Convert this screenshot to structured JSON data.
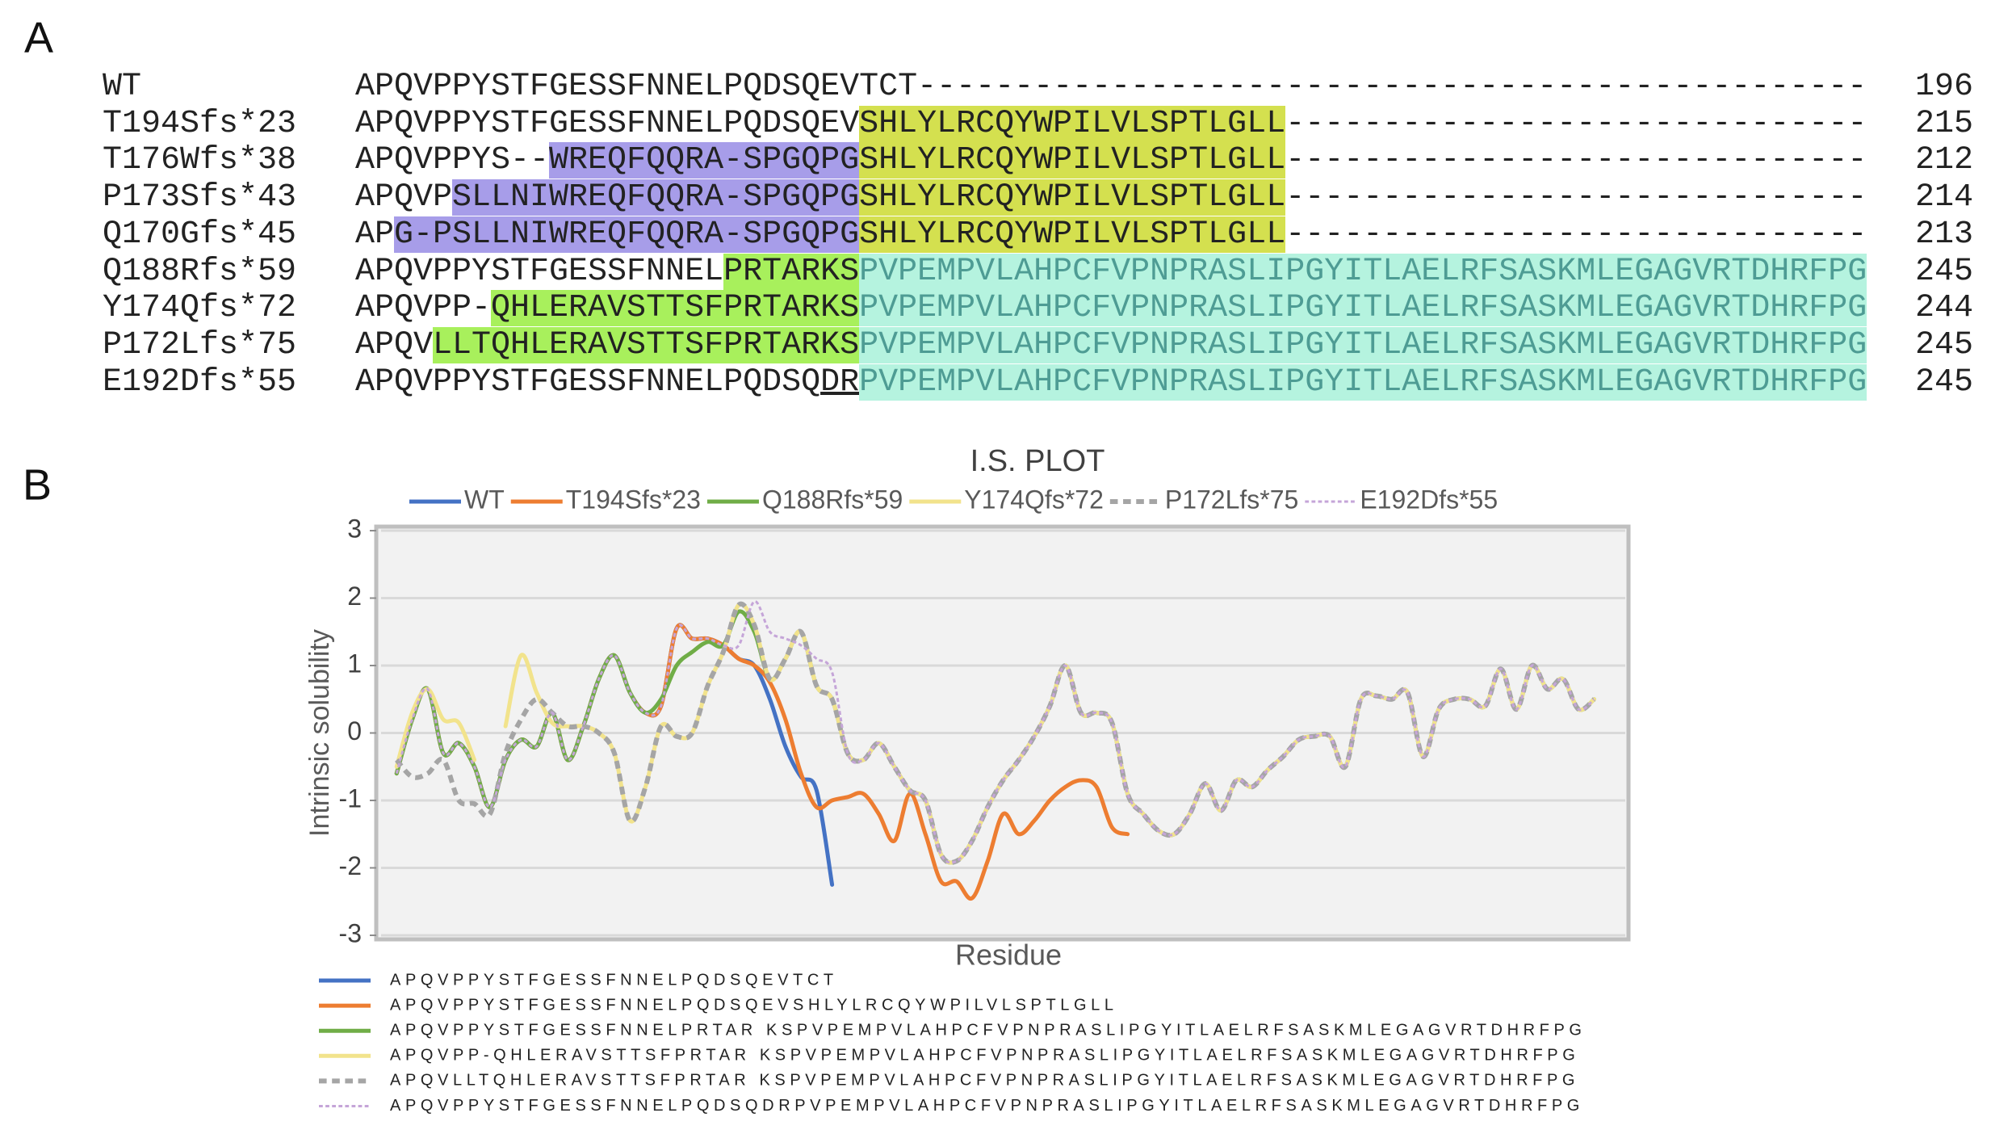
{
  "panel_a": {
    "label": "A",
    "rows": [
      {
        "name": "WT",
        "segments": [
          {
            "text": "APQVPPYSTFGESSFNNELPQDSQEVTCT-------------------------------------------------"
          }
        ],
        "end": 196
      },
      {
        "name": "T194Sfs*23",
        "segments": [
          {
            "text": "APQVPPYSTFGESSFNNELPQDSQEV"
          },
          {
            "text": "SHLYLRCQYWPILVLSPTLGLL",
            "highlight": "#d4e04f"
          },
          {
            "text": "------------------------------"
          }
        ],
        "end": 215
      },
      {
        "name": "T176Wfs*38",
        "segments": [
          {
            "text": "APQVPPYS--"
          },
          {
            "text": "WREQFQQRA-SPGQPG",
            "highlight": "#a79de9"
          },
          {
            "text": "SHLYLRCQYWPILVLSPTLGLL",
            "highlight": "#d4e04f"
          },
          {
            "text": "------------------------------"
          }
        ],
        "end": 212
      },
      {
        "name": "P173Sfs*43",
        "segments": [
          {
            "text": "APQVP"
          },
          {
            "text": "SLLNIWREQFQQRA-SPGQPG",
            "highlight": "#a79de9"
          },
          {
            "text": "SHLYLRCQYWPILVLSPTLGLL",
            "highlight": "#d4e04f"
          },
          {
            "text": "------------------------------"
          }
        ],
        "end": 214
      },
      {
        "name": "Q170Gfs*45",
        "segments": [
          {
            "text": "AP"
          },
          {
            "text": "G-PSLLNIWREQFQQRA-SPGQPG",
            "highlight": "#a79de9"
          },
          {
            "text": "SHLYLRCQYWPILVLSPTLGLL",
            "highlight": "#d4e04f"
          },
          {
            "text": "------------------------------"
          }
        ],
        "end": 213
      },
      {
        "name": "Q188Rfs*59",
        "segments": [
          {
            "text": "APQVPPYSTFGESSFNNEL"
          },
          {
            "text": "PRTARKS",
            "highlight": "#a8f05c"
          },
          {
            "text": "PVPEMPVLAHPCFVPNPRASLIPGYITLAELRFSASKMLEGAGVRTDHRFPG",
            "highlight": "#b5f3df",
            "text_color": "#4e9c94"
          }
        ],
        "end": 245
      },
      {
        "name": "Y174Qfs*72",
        "segments": [
          {
            "text": "APQVPP-"
          },
          {
            "text": "QHLERAVSTTSFPRTARKS",
            "highlight": "#a8f05c"
          },
          {
            "text": "PVPEMPVLAHPCFVPNPRASLIPGYITLAELRFSASKMLEGAGVRTDHRFPG",
            "highlight": "#b5f3df",
            "text_color": "#4e9c94"
          }
        ],
        "end": 244
      },
      {
        "name": "P172Lfs*75",
        "segments": [
          {
            "text": "APQV"
          },
          {
            "text": "LLTQHLERAVSTTSFPRTARKS",
            "highlight": "#a8f05c"
          },
          {
            "text": "PVPEMPVLAHPCFVPNPRASLIPGYITLAELRFSASKMLEGAGVRTDHRFPG",
            "highlight": "#b5f3df",
            "text_color": "#4e9c94"
          }
        ],
        "end": 245
      },
      {
        "name": "E192Dfs*55",
        "segments": [
          {
            "text": "APQVPPYSTFGESSFNNELPQDSQ"
          },
          {
            "text": "DR",
            "underline": true
          },
          {
            "text": "PVPEMPVLAHPCFVPNPRASLIPGYITLAELRFSASKMLEGAGVRTDHRFPG",
            "highlight": "#b5f3df",
            "text_color": "#4e9c94"
          }
        ],
        "end": 245
      }
    ]
  },
  "panel_b": {
    "label": "B"
  },
  "chart_data": {
    "type": "line",
    "title": "I.S. PLOT",
    "ylabel": "Intrinsic solubility",
    "xlabel": "Residue",
    "ylim": [
      -3,
      3
    ],
    "yticks": [
      -3,
      -2,
      -1,
      0,
      1,
      2,
      3
    ],
    "grid": true,
    "smooth": true,
    "series": [
      {
        "name": "WT",
        "color": "#4472c4",
        "line_style": "solid",
        "line_width": 5,
        "sequence": "APQVPPYSTFGESSFNNELPQDSQEVTCT",
        "values": [
          -0.6,
          0.2,
          0.65,
          -0.3,
          -0.15,
          -0.5,
          -1.1,
          -0.4,
          -0.1,
          -0.2,
          0.3,
          -0.4,
          0.1,
          0.8,
          1.15,
          0.6,
          0.3,
          0.4,
          1.55,
          1.4,
          1.4,
          1.3,
          1.1,
          1.0,
          0.5,
          -0.2,
          -0.65,
          -0.85,
          -2.25
        ]
      },
      {
        "name": "T194Sfs*23",
        "color": "#ed7d31",
        "line_style": "solid",
        "line_width": 5,
        "sequence": "APQVPPYSTFGESSFNNELPQDSQEVSHLYLRCQYWPILVLSPTLGLL",
        "values": [
          -0.6,
          0.2,
          0.65,
          -0.3,
          -0.15,
          -0.5,
          -1.1,
          -0.4,
          -0.1,
          -0.2,
          0.3,
          -0.4,
          0.1,
          0.8,
          1.15,
          0.6,
          0.3,
          0.4,
          1.55,
          1.4,
          1.4,
          1.3,
          1.1,
          1.0,
          0.75,
          0.2,
          -0.6,
          -1.1,
          -1.0,
          -0.95,
          -0.9,
          -1.2,
          -1.6,
          -0.9,
          -1.5,
          -2.2,
          -2.2,
          -2.45,
          -1.9,
          -1.2,
          -1.5,
          -1.3,
          -1.0,
          -0.8,
          -0.7,
          -0.8,
          -1.4,
          -1.5
        ]
      },
      {
        "name": "Q188Rfs*59",
        "color": "#70ad47",
        "line_style": "solid",
        "line_width": 5,
        "sequence": "APQVPPYSTFGESSFNNELPRTAR KSPVPEMPVLAHPCFVPNPRASLIPGYITLAELRFSASKMLEGAGVRTDHRFPG",
        "values": [
          -0.6,
          0.2,
          0.65,
          -0.3,
          -0.15,
          -0.5,
          -1.1,
          -0.4,
          -0.1,
          -0.2,
          0.3,
          -0.4,
          0.1,
          0.8,
          1.15,
          0.6,
          0.3,
          0.5,
          1.0,
          1.2,
          1.35,
          1.3,
          1.8,
          1.5,
          0.8,
          1.1,
          1.5,
          0.7,
          0.5,
          -0.3,
          -0.4,
          -0.15,
          -0.5,
          -0.85,
          -1.0,
          -1.8,
          -1.9,
          -1.6,
          -1.1,
          -0.7,
          -0.4,
          -0.05,
          0.4,
          1.0,
          0.3,
          0.3,
          0.15,
          -0.9,
          -1.2,
          -1.45,
          -1.5,
          -1.2,
          -0.75,
          -1.15,
          -0.7,
          -0.8,
          -0.55,
          -0.35,
          -0.1,
          -0.05,
          -0.05,
          -0.5,
          0.5,
          0.55,
          0.5,
          0.6,
          -0.35,
          0.35,
          0.5,
          0.5,
          0.4,
          0.95,
          0.35,
          1.0,
          0.65,
          0.8,
          0.35,
          0.5
        ]
      },
      {
        "name": "Y174Qfs*72",
        "color": "#f2e38c",
        "line_style": "solid",
        "line_width": 5,
        "sequence": "APQVPP-QHLERAVSTTSFPRTAR KSPVPEMPVLAHPCFVPNPRASLIPGYITLAELRFSASKMLEGAGVRTDHRFPG",
        "values": [
          -0.5,
          0.3,
          0.65,
          0.2,
          0.15,
          -0.4,
          null,
          0.1,
          1.15,
          0.6,
          0.15,
          0.1,
          0.1,
          0,
          -0.3,
          -1.3,
          -0.8,
          0.1,
          -0.05,
          0,
          0.7,
          1.2,
          1.9,
          1.6,
          0.8,
          1.1,
          1.5,
          0.7,
          0.5,
          -0.3,
          -0.4,
          -0.15,
          -0.5,
          -0.85,
          -1.0,
          -1.8,
          -1.9,
          -1.6,
          -1.1,
          -0.7,
          -0.4,
          -0.05,
          0.4,
          1.0,
          0.3,
          0.3,
          0.15,
          -0.9,
          -1.2,
          -1.45,
          -1.5,
          -1.2,
          -0.75,
          -1.15,
          -0.7,
          -0.8,
          -0.55,
          -0.35,
          -0.1,
          -0.05,
          -0.05,
          -0.5,
          0.5,
          0.55,
          0.5,
          0.6,
          -0.35,
          0.35,
          0.5,
          0.5,
          0.4,
          0.95,
          0.35,
          1.0,
          0.65,
          0.8,
          0.35,
          0.5
        ]
      },
      {
        "name": "P172Lfs*75",
        "color": "#a5a5a5",
        "line_style": "dashed",
        "line_width": 6,
        "sequence": "APQVLLTQHLERAVSTTSFPRTAR KSPVPEMPVLAHPCFVPNPRASLIPGYITLAELRFSASKMLEGAGVRTDHRFPG",
        "values": [
          -0.4,
          -0.65,
          -0.6,
          -0.4,
          -1.0,
          -1.05,
          -1.2,
          -0.3,
          0.2,
          0.5,
          0.3,
          0.1,
          0.1,
          0,
          -0.3,
          -1.3,
          -0.8,
          0.1,
          -0.05,
          0,
          0.7,
          1.2,
          1.9,
          1.6,
          0.8,
          1.1,
          1.5,
          0.7,
          0.5,
          -0.3,
          -0.4,
          -0.15,
          -0.5,
          -0.85,
          -1.0,
          -1.8,
          -1.9,
          -1.6,
          -1.1,
          -0.7,
          -0.4,
          -0.05,
          0.4,
          1.0,
          0.3,
          0.3,
          0.15,
          -0.9,
          -1.2,
          -1.45,
          -1.5,
          -1.2,
          -0.75,
          -1.15,
          -0.7,
          -0.8,
          -0.55,
          -0.35,
          -0.1,
          -0.05,
          -0.05,
          -0.5,
          0.5,
          0.55,
          0.5,
          0.6,
          -0.35,
          0.35,
          0.5,
          0.5,
          0.4,
          0.95,
          0.35,
          1.0,
          0.65,
          0.8,
          0.35,
          0.5
        ]
      },
      {
        "name": "E192Dfs*55",
        "color": "#c5a5d8",
        "line_style": "dashed",
        "line_width": 3,
        "sequence": "APQVPPYSTFGESSFNNELPQDSQDRPVPEMPVLAHPCFVPNPRASLIPGYITLAELRFSASKMLEGAGVRTDHRFPG",
        "values": [
          -0.6,
          0.2,
          0.65,
          -0.3,
          -0.15,
          -0.5,
          -1.1,
          -0.4,
          -0.1,
          -0.2,
          0.3,
          -0.4,
          0.1,
          0.8,
          1.15,
          0.6,
          0.3,
          0.4,
          1.55,
          1.4,
          1.4,
          1.3,
          1.3,
          1.95,
          1.5,
          1.4,
          1.3,
          1.1,
          0.9,
          -0.3,
          -0.4,
          -0.15,
          -0.5,
          -0.85,
          -1.0,
          -1.8,
          -1.9,
          -1.6,
          -1.1,
          -0.7,
          -0.4,
          -0.05,
          0.4,
          1.0,
          0.3,
          0.3,
          0.15,
          -0.9,
          -1.2,
          -1.45,
          -1.5,
          -1.2,
          -0.75,
          -1.15,
          -0.7,
          -0.8,
          -0.55,
          -0.35,
          -0.1,
          -0.05,
          -0.05,
          -0.5,
          0.5,
          0.55,
          0.5,
          0.6,
          -0.35,
          0.35,
          0.5,
          0.5,
          0.4,
          0.95,
          0.35,
          1.0,
          0.65,
          0.8,
          0.35,
          0.5
        ]
      }
    ]
  }
}
